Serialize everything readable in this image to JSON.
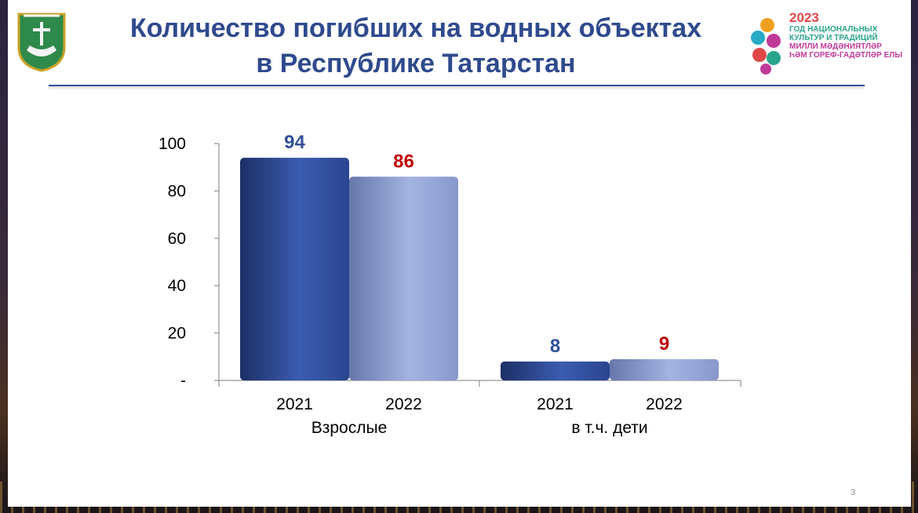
{
  "slide": {
    "title_line1": "Количество погибших на водных объектах",
    "title_line2": "в Республике Татарстан",
    "page_number": "3"
  },
  "logo_2023": {
    "year": "2023",
    "line1": "ГОД НАЦИОНАЛЬНЫХ",
    "line2": "КУЛЬТУР И ТРАДИЦИЙ",
    "line3": "МИЛЛИ МӘДӘНИЯТЛӘР",
    "line4": "ҺӘМ ГОРЕФ-ГАДӘТЛӘР ЕЛЫ"
  },
  "colors": {
    "title": "#2f4a8e",
    "bar_2021": "#2f4f98",
    "bar_2022": "#8d9fd0",
    "label_2021": "#2f4f98",
    "label_2022": "#c00000"
  },
  "chart_data": {
    "type": "bar",
    "title": "",
    "xlabel": "",
    "ylabel": "",
    "ylim": [
      0,
      100
    ],
    "yticks": [
      "-",
      "20",
      "40",
      "60",
      "80",
      "100"
    ],
    "groups": [
      "Взрослые",
      "в т.ч. дети"
    ],
    "series": [
      {
        "name": "2021",
        "values": [
          94,
          8
        ]
      },
      {
        "name": "2022",
        "values": [
          86,
          9
        ]
      }
    ],
    "legend": "none",
    "grid": false
  }
}
